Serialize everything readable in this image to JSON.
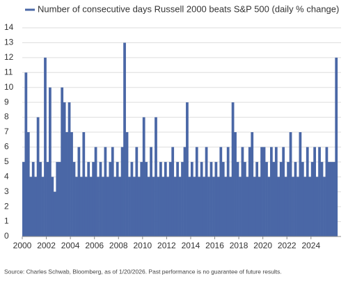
{
  "chart_data": {
    "type": "bar",
    "source": "Source: Charles Schwab, Bloomberg, as of 1/20/2026. Past performance is no guarantee of future results.",
    "x": [
      2000.0,
      2000.2,
      2000.4,
      2000.6,
      2000.8,
      2001.0,
      2001.2,
      2001.4,
      2001.6,
      2001.8,
      2002.0,
      2002.2,
      2002.4,
      2002.6,
      2002.8,
      2003.0,
      2003.2,
      2003.4,
      2003.6,
      2003.8,
      2004.0,
      2004.2,
      2004.4,
      2004.6,
      2004.8,
      2005.0,
      2005.2,
      2005.4,
      2005.6,
      2005.8,
      2006.0,
      2006.2,
      2006.4,
      2006.6,
      2006.8,
      2007.0,
      2007.2,
      2007.4,
      2007.6,
      2007.8,
      2008.0,
      2008.2,
      2008.4,
      2008.6,
      2008.8,
      2009.0,
      2009.2,
      2009.4,
      2009.6,
      2009.8,
      2010.0,
      2010.2,
      2010.4,
      2010.6,
      2010.8,
      2011.0,
      2011.2,
      2011.4,
      2011.6,
      2011.8,
      2012.0,
      2012.2,
      2012.4,
      2012.6,
      2012.8,
      2013.0,
      2013.2,
      2013.4,
      2013.6,
      2013.8,
      2014.0,
      2014.2,
      2014.4,
      2014.6,
      2014.8,
      2015.0,
      2015.2,
      2015.4,
      2015.6,
      2015.8,
      2016.0,
      2016.2,
      2016.4,
      2016.6,
      2016.8,
      2017.0,
      2017.2,
      2017.4,
      2017.6,
      2017.8,
      2018.0,
      2018.2,
      2018.4,
      2018.6,
      2018.8,
      2019.0,
      2019.2,
      2019.4,
      2019.6,
      2019.8,
      2020.0,
      2020.2,
      2020.4,
      2020.6,
      2020.8,
      2021.0,
      2021.2,
      2021.4,
      2021.6,
      2021.8,
      2022.0,
      2022.2,
      2022.4,
      2022.6,
      2022.8,
      2023.0,
      2023.2,
      2023.4,
      2023.6,
      2023.8,
      2024.0,
      2024.2,
      2024.4,
      2024.6,
      2024.8,
      2025.0,
      2025.2,
      2025.4,
      2025.6,
      2025.8,
      2026.0
    ],
    "series": [
      {
        "name": "Number of consecutive days Russell 2000 beats S&P 500 (daily % change)",
        "color": "#4a67a6",
        "values": [
          5,
          11,
          7,
          4,
          5,
          4,
          8,
          5,
          4,
          12,
          5,
          10,
          4,
          3,
          5,
          5,
          10,
          9,
          7,
          9,
          7,
          5,
          4,
          6,
          4,
          7,
          4,
          5,
          4,
          5,
          6,
          4,
          5,
          4,
          6,
          4,
          5,
          6,
          4,
          5,
          4,
          6,
          13,
          7,
          4,
          5,
          4,
          6,
          4,
          5,
          8,
          5,
          4,
          6,
          4,
          8,
          4,
          5,
          4,
          5,
          4,
          5,
          6,
          4,
          5,
          4,
          5,
          6,
          9,
          4,
          5,
          4,
          6,
          4,
          5,
          4,
          6,
          4,
          5,
          4,
          5,
          4,
          6,
          5,
          4,
          6,
          4,
          9,
          7,
          5,
          4,
          6,
          5,
          4,
          6,
          7,
          4,
          5,
          4,
          6,
          6,
          5,
          4,
          6,
          5,
          6,
          4,
          5,
          6,
          4,
          5,
          7,
          4,
          5,
          4,
          7,
          5,
          4,
          6,
          4,
          5,
          6,
          4,
          6,
          5,
          4,
          6,
          5,
          5,
          5,
          12
        ]
      }
    ],
    "xlim": [
      2000,
      2026.5
    ],
    "xticks": [
      2000,
      2002,
      2004,
      2006,
      2008,
      2010,
      2012,
      2014,
      2016,
      2018,
      2020,
      2022,
      2024
    ],
    "ylim": [
      0,
      14
    ],
    "yticks": [
      0,
      1,
      2,
      3,
      4,
      5,
      6,
      7,
      8,
      9,
      10,
      11,
      12,
      13,
      14
    ],
    "grid": true
  }
}
